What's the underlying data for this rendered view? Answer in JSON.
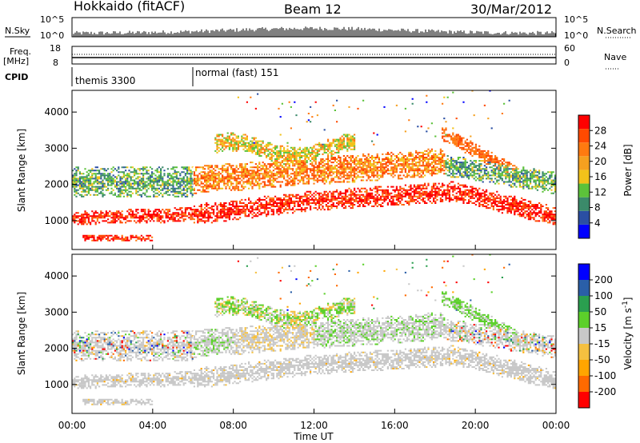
{
  "header": {
    "station": "Hokkaido (fitACF)",
    "beam": "Beam 12",
    "date": "30/Mar/2012"
  },
  "top_panels": {
    "nsky_label": "N.Sky",
    "nsky_ticks": [
      "10^5",
      "10^0"
    ],
    "nsearch_label": "N.Search",
    "nsearch_ticks": [
      "10^5",
      "10^0"
    ],
    "freq_label": "Freq.",
    "freq_unit": "[MHz]",
    "freq_ticks": [
      "18",
      "8"
    ],
    "nave_label": "Nave",
    "nave_ticks": [
      "60",
      "0"
    ],
    "cpid_label": "CPID",
    "cpid_segments": [
      {
        "name": "themis 3300",
        "start_hour": 0
      },
      {
        "name": "normal (fast) 151",
        "start_hour": 6
      }
    ]
  },
  "colors": {
    "power_scale": [
      "#0000ff",
      "#2b4fa3",
      "#3b8a6a",
      "#5cc23a",
      "#f2c21a",
      "#f5a020",
      "#ff7a10",
      "#ff4a00",
      "#ff0000"
    ],
    "velocity_scale": [
      "#ff0000",
      "#ff6a00",
      "#ffa500",
      "#f5c040",
      "#c8c8c8",
      "#5cd02a",
      "#2a9f4f",
      "#2a5fa8",
      "#0000ff"
    ],
    "gray": "#c8c8c8"
  },
  "chart_data": [
    {
      "type": "heatmap",
      "name": "power",
      "ylabel": "Slant Range [km]",
      "yticks": [
        1000,
        2000,
        3000,
        4000
      ],
      "ylim": [
        200,
        4600
      ],
      "xlim": [
        0,
        24
      ],
      "colorbar": {
        "label": "Power [dB]",
        "ticks": [
          "28",
          "24",
          "20",
          "16",
          "12",
          "8",
          "4"
        ],
        "range": [
          0,
          32
        ]
      }
    },
    {
      "type": "heatmap",
      "name": "velocity",
      "ylabel": "Slant Range [km]",
      "yticks": [
        1000,
        2000,
        3000,
        4000
      ],
      "ylim": [
        200,
        4600
      ],
      "xlim": [
        0,
        24
      ],
      "xlabel": "Time UT",
      "xticks": [
        "00:00",
        "04:00",
        "08:00",
        "12:00",
        "16:00",
        "20:00",
        "00:00"
      ],
      "colorbar": {
        "label": "Velocity [m s^-1]",
        "ticks": [
          "200",
          "100",
          "50",
          "15",
          "-15",
          "-50",
          "-100",
          "-200"
        ]
      }
    }
  ]
}
